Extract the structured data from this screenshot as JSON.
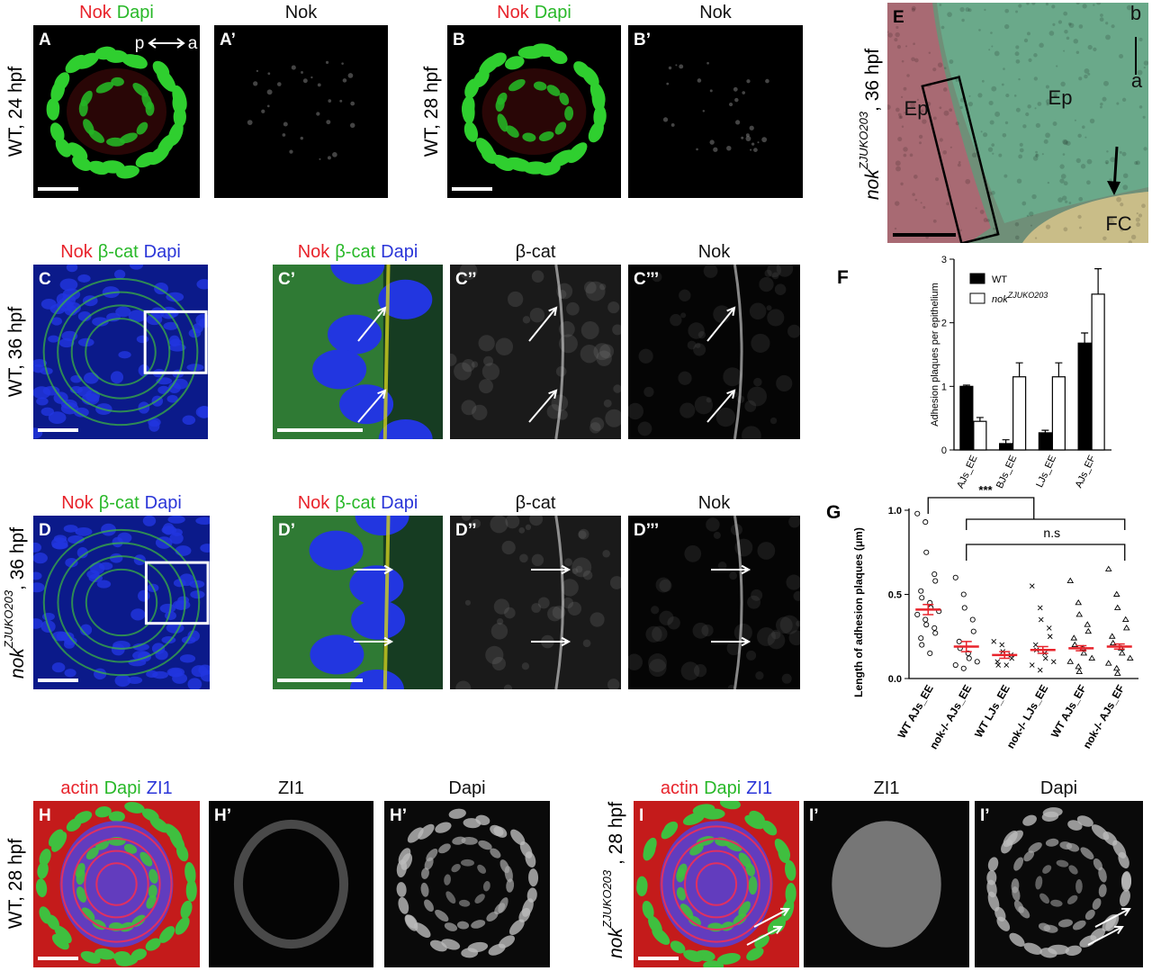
{
  "panels": [
    {
      "label": "A",
      "header": [
        "Nok",
        "Dapi"
      ],
      "header_colors": [
        "#e8232b",
        "#28b828"
      ],
      "side": "WT, 24 hpf",
      "inner": [
        "p",
        "a"
      ]
    },
    {
      "label": "A’",
      "header": [
        "Nok"
      ],
      "header_colors": [
        "#111111"
      ]
    },
    {
      "label": "B",
      "header": [
        "Nok",
        "Dapi"
      ],
      "header_colors": [
        "#e8232b",
        "#28b828"
      ],
      "side": "WT, 28 hpf"
    },
    {
      "label": "B’",
      "header": [
        "Nok"
      ],
      "header_colors": [
        "#111111"
      ]
    },
    {
      "label": "E",
      "header": [],
      "header_colors": [],
      "side": {
        "main": "nok",
        "sup": "ZJUKO203",
        "rest": ", 36 hpf"
      },
      "inner": [
        "Ep",
        "Ep",
        "FC",
        "b",
        "a"
      ]
    },
    {
      "label": "C",
      "header": [
        "Nok",
        "β-cat",
        "Dapi"
      ],
      "header_colors": [
        "#e8232b",
        "#28b828",
        "#2a35d8"
      ],
      "side": "WT, 36 hpf"
    },
    {
      "label": "C’",
      "header": [
        "Nok",
        "β-cat",
        "Dapi"
      ],
      "header_colors": [
        "#e8232b",
        "#28b828",
        "#2a35d8"
      ]
    },
    {
      "label": "C’’",
      "header": [
        "β-cat"
      ],
      "header_colors": [
        "#111111"
      ]
    },
    {
      "label": "C’’’",
      "header": [
        "Nok"
      ],
      "header_colors": [
        "#111111"
      ]
    },
    {
      "label": "D",
      "header": [
        "Nok",
        "β-cat",
        "Dapi"
      ],
      "header_colors": [
        "#e8232b",
        "#28b828",
        "#2a35d8"
      ],
      "side": {
        "main": "nok",
        "sup": "ZJUKO203",
        "rest": ", 36 hpf"
      }
    },
    {
      "label": "D’",
      "header": [
        "Nok",
        "β-cat",
        "Dapi"
      ],
      "header_colors": [
        "#e8232b",
        "#28b828",
        "#2a35d8"
      ]
    },
    {
      "label": "D’’",
      "header": [
        "β-cat"
      ],
      "header_colors": [
        "#111111"
      ]
    },
    {
      "label": "D’’’",
      "header": [
        "Nok"
      ],
      "header_colors": [
        "#111111"
      ]
    },
    {
      "label": "H",
      "header": [
        "actin",
        "Dapi",
        "ZI1"
      ],
      "header_colors": [
        "#e8232b",
        "#28b828",
        "#2a35d8"
      ],
      "side": "WT, 28 hpf"
    },
    {
      "label": "H’",
      "header": [
        "ZI1"
      ],
      "header_colors": [
        "#111111"
      ]
    },
    {
      "label": "H’",
      "header": [
        "Dapi"
      ],
      "header_colors": [
        "#111111"
      ]
    },
    {
      "label": "I",
      "header": [
        "actin",
        "Dapi",
        "ZI1"
      ],
      "header_colors": [
        "#e8232b",
        "#28b828",
        "#2a35d8"
      ],
      "side": {
        "main": "nok",
        "sup": "ZJUKO203",
        "rest": " , 28 hpf"
      }
    },
    {
      "label": "I’",
      "header": [
        "ZI1"
      ],
      "header_colors": [
        "#111111"
      ]
    },
    {
      "label": "I’",
      "header": [
        "Dapi"
      ],
      "header_colors": [
        "#111111"
      ]
    }
  ],
  "chart_data": [
    {
      "type": "bar",
      "label": "F",
      "ylabel": "Adhesion plaques per epithelium",
      "categories": [
        "AJs_EE",
        "BJs_EE",
        "LJs_EE",
        "AJs_EF"
      ],
      "series": [
        {
          "name": "WT",
          "color": "#000000",
          "values": [
            1.0,
            0.1,
            0.27,
            1.68
          ],
          "errors": [
            0.02,
            0.06,
            0.04,
            0.16
          ]
        },
        {
          "name": "nok",
          "name_superscript": "ZJUKO203",
          "color": "#ffffff",
          "values": [
            0.45,
            1.15,
            1.15,
            2.45
          ],
          "errors": [
            0.06,
            0.22,
            0.22,
            0.4
          ]
        }
      ],
      "ylim": [
        0,
        3
      ],
      "yticks": [
        0,
        1,
        2,
        3
      ]
    },
    {
      "type": "strip",
      "label": "G",
      "ylabel": "Length of adhesion plaques (μm)",
      "categories": [
        "WT AJs_EE",
        "nok-/- AJs_EE",
        "WT LJs_EE",
        "nok-/- LJs_EE",
        "WT AJs_EF",
        "nok-/- AJs_EF"
      ],
      "markers": [
        "circle",
        "circle",
        "cross",
        "cross",
        "triangle",
        "triangle"
      ],
      "points": [
        [
          0.98,
          0.93,
          0.75,
          0.62,
          0.58,
          0.52,
          0.48,
          0.45,
          0.42,
          0.4,
          0.38,
          0.35,
          0.32,
          0.3,
          0.27,
          0.24,
          0.2,
          0.15
        ],
        [
          0.6,
          0.5,
          0.42,
          0.35,
          0.28,
          0.22,
          0.18,
          0.15,
          0.12,
          0.1,
          0.08,
          0.06
        ],
        [
          0.22,
          0.2,
          0.16,
          0.14,
          0.12,
          0.1,
          0.08,
          0.08
        ],
        [
          0.55,
          0.42,
          0.35,
          0.3,
          0.25,
          0.2,
          0.17,
          0.15,
          0.12,
          0.1,
          0.08,
          0.05
        ],
        [
          0.58,
          0.45,
          0.38,
          0.32,
          0.28,
          0.24,
          0.2,
          0.18,
          0.15,
          0.12,
          0.1,
          0.07,
          0.04
        ],
        [
          0.65,
          0.5,
          0.42,
          0.35,
          0.3,
          0.25,
          0.21,
          0.18,
          0.15,
          0.12,
          0.09,
          0.06,
          0.03
        ]
      ],
      "means": [
        0.41,
        0.19,
        0.14,
        0.17,
        0.18,
        0.19
      ],
      "errors": [
        0.03,
        0.03,
        0.02,
        0.02,
        0.015,
        0.015
      ],
      "mean_color": "#e8232b",
      "ylim": [
        0,
        1
      ],
      "yticks": [
        {
          "value": 0,
          "label": "0.0"
        },
        {
          "value": 0.5,
          "label": "0.5"
        },
        {
          "value": 1,
          "label": "1.0"
        }
      ],
      "annotations": [
        "***",
        "n.s"
      ]
    }
  ]
}
